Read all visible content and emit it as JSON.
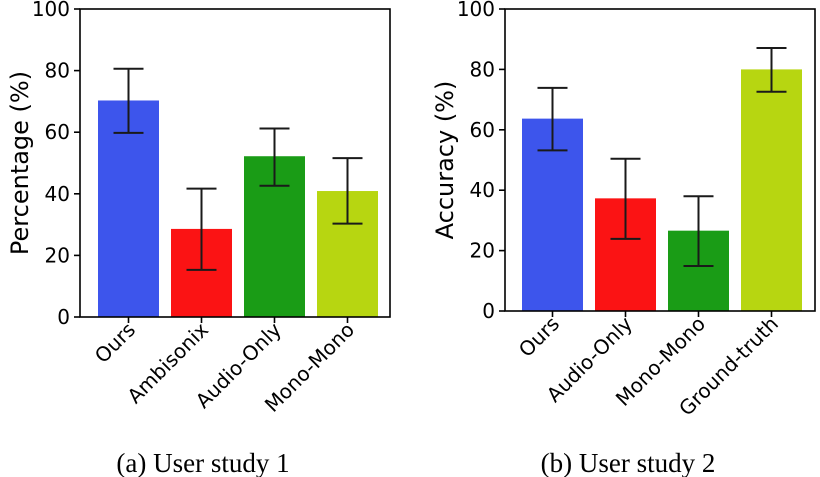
{
  "chart_data": [
    {
      "type": "bar",
      "caption": "(a) User study 1",
      "ylabel": "Percentage (%)",
      "xlabel": "",
      "ylim": [
        0,
        100
      ],
      "yticks": [
        0,
        20,
        40,
        60,
        80,
        100
      ],
      "categories": [
        "Ours",
        "Ambisonix",
        "Audio-Only",
        "Mono-Mono"
      ],
      "values": [
        70.3,
        28.6,
        52.2,
        40.9
      ],
      "error_low": [
        59.8,
        15.3,
        42.6,
        30.3
      ],
      "error_high": [
        80.6,
        41.7,
        61.2,
        51.6
      ],
      "colors": [
        "#3d55ec",
        "#fb1314",
        "#1a9c16",
        "#b7d611"
      ],
      "grid": false,
      "legend": "none"
    },
    {
      "type": "bar",
      "caption": "(b) User study 2",
      "ylabel": "Accuracy (%)",
      "xlabel": "",
      "ylim": [
        0,
        100
      ],
      "yticks": [
        0,
        20,
        40,
        60,
        80,
        100
      ],
      "categories": [
        "Ours",
        "Audio-Only",
        "Mono-Mono",
        "Ground-truth"
      ],
      "values": [
        63.7,
        37.3,
        26.6,
        80.0
      ],
      "error_low": [
        53.2,
        23.9,
        14.9,
        72.6
      ],
      "error_high": [
        73.9,
        50.4,
        38.0,
        87.1
      ],
      "colors": [
        "#3d55ec",
        "#fb1314",
        "#1a9c16",
        "#b7d611"
      ],
      "grid": false,
      "legend": "none"
    }
  ]
}
